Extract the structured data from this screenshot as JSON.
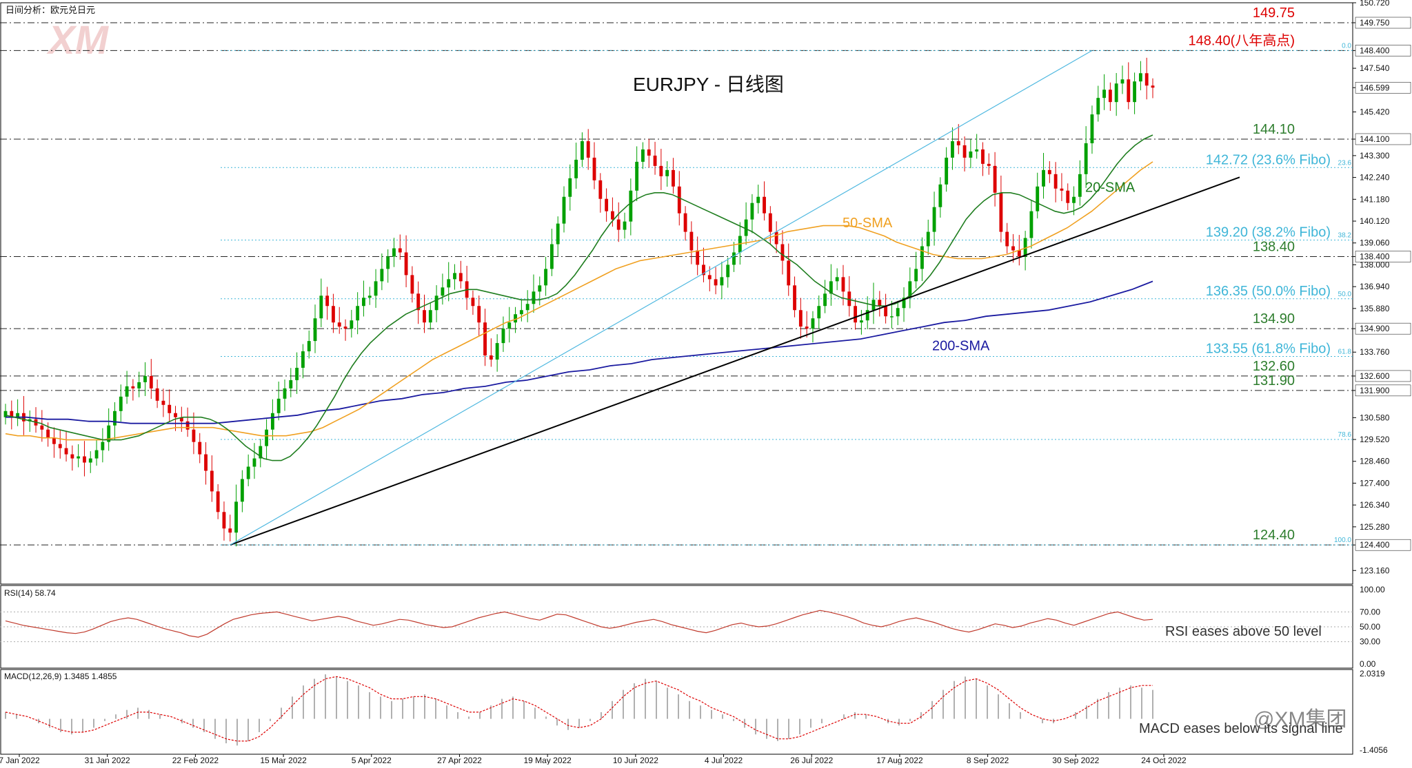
{
  "header": {
    "title_cn": "日间分析：欧元兑日元",
    "chart_title": "EURJPY - 日线图",
    "watermark": "XM",
    "footer_watermark": "@XM集团"
  },
  "colors": {
    "bull": "#00a000",
    "bear": "#dd0000",
    "sma20": "#1e7d1e",
    "sma50": "#f0a020",
    "sma200": "#1a1aa0",
    "trend": "#000000",
    "channel": "#4fb8e0",
    "fibo": "#3fb6d8",
    "level_red": "#dd0000",
    "level_green": "#2d7d2d",
    "rsi_line": "#c0392b",
    "macd_hist": "#b0b0b0",
    "macd_signal": "#dd0000"
  },
  "chart_data": {
    "type": "candlestick",
    "symbol": "EURJPY",
    "ylim": [
      122.5,
      150.72
    ],
    "price_ticks": [
      "150.720",
      "149.750",
      "148.400",
      "147.540",
      "146.599",
      "145.420",
      "144.100",
      "143.300",
      "142.240",
      "141.180",
      "140.120",
      "139.060",
      "138.400",
      "138.000",
      "136.940",
      "135.880",
      "134.900",
      "133.760",
      "132.600",
      "131.900",
      "130.580",
      "129.520",
      "128.460",
      "127.400",
      "126.340",
      "125.280",
      "124.400",
      "123.160"
    ],
    "current_price": "146.599",
    "date_labels": [
      "7 Jan 2022",
      "31 Jan 2022",
      "22 Feb 2022",
      "15 Mar 2022",
      "5 Apr 2022",
      "27 Apr 2022",
      "19 May 2022",
      "10 Jun 2022",
      "4 Jul 2022",
      "26 Jul 2022",
      "17 Aug 2022",
      "8 Sep 2022",
      "30 Sep 2022",
      "24 Oct 2022"
    ],
    "levels": [
      {
        "label": "149.75",
        "value": 149.75,
        "kind": "red"
      },
      {
        "label": "148.40(八年高点)",
        "value": 148.4,
        "kind": "red"
      },
      {
        "label": "144.10",
        "value": 144.1,
        "kind": "green"
      },
      {
        "label": "138.40",
        "value": 138.4,
        "kind": "green"
      },
      {
        "label": "134.90",
        "value": 134.9,
        "kind": "green"
      },
      {
        "label": "132.60",
        "value": 132.6,
        "kind": "green"
      },
      {
        "label": "131.90",
        "value": 131.9,
        "kind": "green"
      },
      {
        "label": "124.40",
        "value": 124.4,
        "kind": "green"
      }
    ],
    "fibo": [
      {
        "label": "",
        "pct": "0.0",
        "value": 148.4
      },
      {
        "label": "142.72 (23.6% Fibo)",
        "pct": "23.6",
        "value": 142.72
      },
      {
        "label": "139.20 (38.2% Fibo)",
        "pct": "38.2",
        "value": 139.2
      },
      {
        "label": "136.35 (50.0% Fibo)",
        "pct": "50.0",
        "value": 136.35
      },
      {
        "label": "133.55 (61.8% Fibo)",
        "pct": "61.8",
        "value": 133.55
      },
      {
        "label": "",
        "pct": "78.6",
        "value": 129.52
      },
      {
        "label": "",
        "pct": "100.0",
        "value": 124.4
      }
    ],
    "ma_labels": {
      "sma20": "20-SMA",
      "sma50": "50-SMA",
      "sma200": "200-SMA"
    },
    "closes": [
      130.9,
      130.6,
      130.8,
      130.4,
      130.5,
      130.2,
      130.0,
      129.6,
      129.3,
      129.1,
      128.8,
      128.6,
      128.7,
      128.4,
      128.6,
      129.0,
      129.4,
      130.2,
      130.9,
      131.6,
      132.1,
      132.0,
      132.3,
      132.6,
      132.0,
      131.4,
      131.2,
      130.8,
      130.6,
      130.4,
      130.0,
      129.4,
      128.8,
      128.0,
      127.0,
      126.0,
      125.2,
      125.0,
      126.5,
      127.6,
      128.2,
      128.6,
      129.2,
      130.0,
      130.8,
      131.5,
      132.0,
      132.4,
      133.0,
      133.8,
      134.3,
      135.4,
      136.5,
      136.0,
      135.2,
      135.0,
      134.9,
      135.3,
      136.0,
      136.4,
      136.5,
      137.2,
      137.8,
      138.4,
      138.8,
      138.6,
      137.5,
      136.6,
      135.8,
      135.2,
      135.8,
      136.5,
      136.9,
      137.3,
      137.6,
      137.2,
      136.4,
      136.0,
      135.2,
      133.6,
      133.4,
      134.2,
      134.9,
      135.2,
      135.6,
      135.8,
      136.1,
      136.7,
      137.0,
      137.8,
      139.0,
      140.0,
      141.3,
      142.2,
      143.1,
      144.0,
      143.2,
      142.1,
      141.2,
      140.6,
      140.2,
      139.7,
      140.1,
      141.6,
      143.0,
      143.6,
      143.3,
      142.8,
      142.3,
      142.6,
      141.8,
      140.5,
      139.6,
      138.7,
      138.0,
      137.5,
      137.3,
      137.0,
      137.4,
      138.0,
      138.6,
      139.4,
      140.2,
      141.0,
      141.3,
      140.5,
      139.6,
      139.0,
      138.2,
      137.0,
      135.8,
      135.0,
      134.9,
      135.4,
      136.0,
      136.6,
      137.2,
      137.4,
      136.7,
      136.0,
      135.2,
      135.3,
      135.8,
      136.3,
      136.0,
      135.5,
      135.5,
      135.9,
      136.4,
      137.2,
      137.8,
      138.9,
      139.6,
      140.8,
      141.9,
      143.2,
      144.0,
      143.8,
      143.2,
      143.5,
      143.6,
      142.9,
      142.8,
      141.5,
      139.6,
      138.9,
      138.7,
      138.4,
      139.3,
      140.6,
      141.8,
      142.6,
      142.4,
      141.7,
      141.6,
      141.0,
      141.3,
      142.4,
      143.9,
      145.3,
      146.1,
      146.5,
      145.9,
      146.8,
      147.0,
      145.9,
      146.9,
      147.3,
      146.7,
      146.6
    ],
    "sma20": [
      130.7,
      130.6,
      130.5,
      130.4,
      130.3,
      130.1,
      130.0,
      129.9,
      129.8,
      129.7,
      129.6,
      129.5,
      129.5,
      129.5,
      129.6,
      129.7,
      129.9,
      130.1,
      130.3,
      130.5,
      130.6,
      130.6,
      130.6,
      130.5,
      130.3,
      130.0,
      129.6,
      129.2,
      128.9,
      128.6,
      128.5,
      128.5,
      128.7,
      129.1,
      129.6,
      130.2,
      130.9,
      131.6,
      132.4,
      133.1,
      133.7,
      134.2,
      134.6,
      135.0,
      135.3,
      135.6,
      135.8,
      136.0,
      136.2,
      136.4,
      136.6,
      136.7,
      136.8,
      136.8,
      136.7,
      136.6,
      136.5,
      136.4,
      136.3,
      136.3,
      136.3,
      136.4,
      136.6,
      137.0,
      137.5,
      138.1,
      138.7,
      139.4,
      140.0,
      140.5,
      140.9,
      141.2,
      141.4,
      141.5,
      141.5,
      141.4,
      141.2,
      141.0,
      140.8,
      140.6,
      140.4,
      140.2,
      140.0,
      139.8,
      139.6,
      139.3,
      139.0,
      138.6,
      138.3,
      138.0,
      137.6,
      137.2,
      136.9,
      136.6,
      136.4,
      136.3,
      136.2,
      136.1,
      136.0,
      136.0,
      136.1,
      136.3,
      136.6,
      137.0,
      137.5,
      138.1,
      138.8,
      139.5,
      140.2,
      140.7,
      141.1,
      141.4,
      141.5,
      141.5,
      141.4,
      141.2,
      141.0,
      140.8,
      140.6,
      140.5,
      140.6,
      140.8,
      141.2,
      141.7,
      142.3,
      142.9,
      143.4,
      143.8,
      144.1,
      144.3
    ],
    "sma50": [
      129.8,
      129.7,
      129.7,
      129.6,
      129.6,
      129.5,
      129.5,
      129.5,
      129.5,
      129.6,
      129.7,
      129.8,
      129.9,
      130.0,
      130.1,
      130.1,
      130.1,
      130.1,
      130.0,
      129.9,
      129.8,
      129.7,
      129.7,
      129.7,
      129.8,
      129.9,
      130.1,
      130.4,
      130.7,
      131.0,
      131.4,
      131.8,
      132.2,
      132.6,
      133.0,
      133.4,
      133.7,
      134.0,
      134.3,
      134.6,
      134.9,
      135.2,
      135.4,
      135.7,
      136.0,
      136.3,
      136.6,
      136.9,
      137.2,
      137.5,
      137.8,
      138.0,
      138.2,
      138.3,
      138.4,
      138.5,
      138.6,
      138.7,
      138.8,
      138.9,
      139.0,
      139.1,
      139.2,
      139.4,
      139.6,
      139.7,
      139.8,
      139.9,
      139.9,
      139.9,
      139.8,
      139.6,
      139.4,
      139.1,
      138.9,
      138.7,
      138.5,
      138.4,
      138.3,
      138.3,
      138.3,
      138.4,
      138.5,
      138.7,
      138.9,
      139.2,
      139.5,
      139.8,
      140.2,
      140.6,
      141.1,
      141.6,
      142.1,
      142.6,
      143.0
    ],
    "sma200": [
      130.6,
      130.6,
      130.5,
      130.5,
      130.4,
      130.4,
      130.3,
      130.3,
      130.3,
      130.3,
      130.3,
      130.4,
      130.5,
      130.6,
      130.7,
      130.9,
      131.0,
      131.2,
      131.4,
      131.5,
      131.7,
      131.8,
      132.0,
      132.1,
      132.3,
      132.4,
      132.6,
      132.8,
      132.9,
      133.1,
      133.2,
      133.4,
      133.5,
      133.6,
      133.7,
      133.8,
      133.9,
      134.0,
      134.1,
      134.2,
      134.3,
      134.4,
      134.6,
      134.8,
      135.0,
      135.2,
      135.3,
      135.5,
      135.6,
      135.7,
      135.8,
      136.0,
      136.2,
      136.5,
      136.8,
      137.2
    ],
    "rsi": {
      "label": "RSI(14) 58.74",
      "value": 58.74,
      "ylim": [
        0,
        100
      ],
      "ticks": [
        "100.00",
        "70.00",
        "50.00",
        "30.00",
        "0.00"
      ],
      "annotation": "RSI eases above 50 level",
      "values": [
        58,
        55,
        52,
        50,
        48,
        46,
        44,
        42,
        41,
        43,
        47,
        52,
        57,
        60,
        62,
        60,
        56,
        52,
        48,
        45,
        42,
        38,
        36,
        40,
        47,
        54,
        60,
        63,
        66,
        68,
        69,
        70,
        67,
        64,
        61,
        58,
        60,
        62,
        64,
        62,
        58,
        55,
        52,
        54,
        57,
        60,
        59,
        56,
        53,
        51,
        49,
        50,
        54,
        58,
        62,
        65,
        68,
        70,
        67,
        64,
        61,
        59,
        63,
        67,
        66,
        62,
        58,
        54,
        50,
        48,
        50,
        53,
        56,
        58,
        60,
        57,
        53,
        50,
        47,
        44,
        42,
        45,
        49,
        53,
        55,
        52,
        50,
        51,
        54,
        58,
        62,
        66,
        69,
        72,
        70,
        67,
        64,
        60,
        55,
        52,
        50,
        53,
        57,
        60,
        62,
        59,
        56,
        52,
        48,
        45,
        43,
        46,
        50,
        54,
        52,
        49,
        51,
        55,
        58,
        61,
        59,
        55,
        52,
        56,
        60,
        64,
        68,
        70,
        66,
        62,
        59,
        60
      ]
    },
    "macd": {
      "label": "MACD(12,26,9) 1.3485 1.4855",
      "macd": 1.3485,
      "signal": 1.4855,
      "ylim": [
        -1.4056,
        2.0319
      ],
      "ticks": [
        "2.0319",
        "-1.4056"
      ],
      "annotation": "MACD eases below its signal line",
      "hist": [
        0.3,
        0.2,
        0.0,
        -0.2,
        -0.4,
        -0.6,
        -0.7,
        -0.6,
        -0.4,
        -0.1,
        0.2,
        0.4,
        0.5,
        0.4,
        0.2,
        0.0,
        -0.2,
        -0.4,
        -0.6,
        -0.9,
        -1.1,
        -1.2,
        -1.0,
        -0.6,
        -0.1,
        0.5,
        1.0,
        1.5,
        1.8,
        2.0,
        1.9,
        1.7,
        1.5,
        1.2,
        1.0,
        0.8,
        0.9,
        1.0,
        1.1,
        0.9,
        0.6,
        0.3,
        0.1,
        0.3,
        0.6,
        0.9,
        1.0,
        0.8,
        0.5,
        0.1,
        -0.3,
        -0.5,
        -0.4,
        -0.1,
        0.3,
        0.8,
        1.3,
        1.6,
        1.8,
        1.7,
        1.4,
        1.1,
        0.8,
        0.6,
        0.4,
        0.2,
        -0.1,
        -0.4,
        -0.7,
        -0.9,
        -1.0,
        -0.9,
        -0.7,
        -0.4,
        -0.2,
        0.0,
        0.2,
        0.3,
        0.2,
        0.0,
        -0.2,
        -0.3,
        -0.1,
        0.3,
        0.8,
        1.3,
        1.7,
        1.9,
        1.8,
        1.5,
        1.1,
        0.7,
        0.3,
        0.0,
        -0.2,
        -0.2,
        0.0,
        0.3,
        0.6,
        0.9,
        1.2,
        1.4,
        1.5,
        1.4,
        1.3
      ],
      "signal_line": [
        0.3,
        0.2,
        0.1,
        -0.1,
        -0.3,
        -0.5,
        -0.6,
        -0.6,
        -0.5,
        -0.3,
        -0.1,
        0.1,
        0.3,
        0.3,
        0.2,
        0.1,
        -0.1,
        -0.3,
        -0.5,
        -0.7,
        -0.9,
        -1.0,
        -1.0,
        -0.8,
        -0.4,
        0.1,
        0.6,
        1.1,
        1.5,
        1.8,
        1.9,
        1.8,
        1.6,
        1.4,
        1.1,
        0.9,
        0.9,
        1.0,
        1.0,
        0.9,
        0.7,
        0.5,
        0.3,
        0.3,
        0.5,
        0.7,
        0.9,
        0.8,
        0.6,
        0.3,
        0.0,
        -0.3,
        -0.4,
        -0.3,
        0.0,
        0.5,
        1.0,
        1.4,
        1.6,
        1.7,
        1.5,
        1.3,
        1.0,
        0.8,
        0.5,
        0.3,
        0.1,
        -0.2,
        -0.5,
        -0.7,
        -0.9,
        -0.9,
        -0.8,
        -0.6,
        -0.4,
        -0.2,
        0.0,
        0.2,
        0.2,
        0.1,
        -0.1,
        -0.2,
        -0.2,
        0.1,
        0.5,
        1.0,
        1.4,
        1.7,
        1.8,
        1.6,
        1.3,
        0.9,
        0.5,
        0.2,
        0.0,
        -0.1,
        0.0,
        0.2,
        0.5,
        0.8,
        1.0,
        1.2,
        1.4,
        1.5,
        1.5
      ]
    }
  }
}
